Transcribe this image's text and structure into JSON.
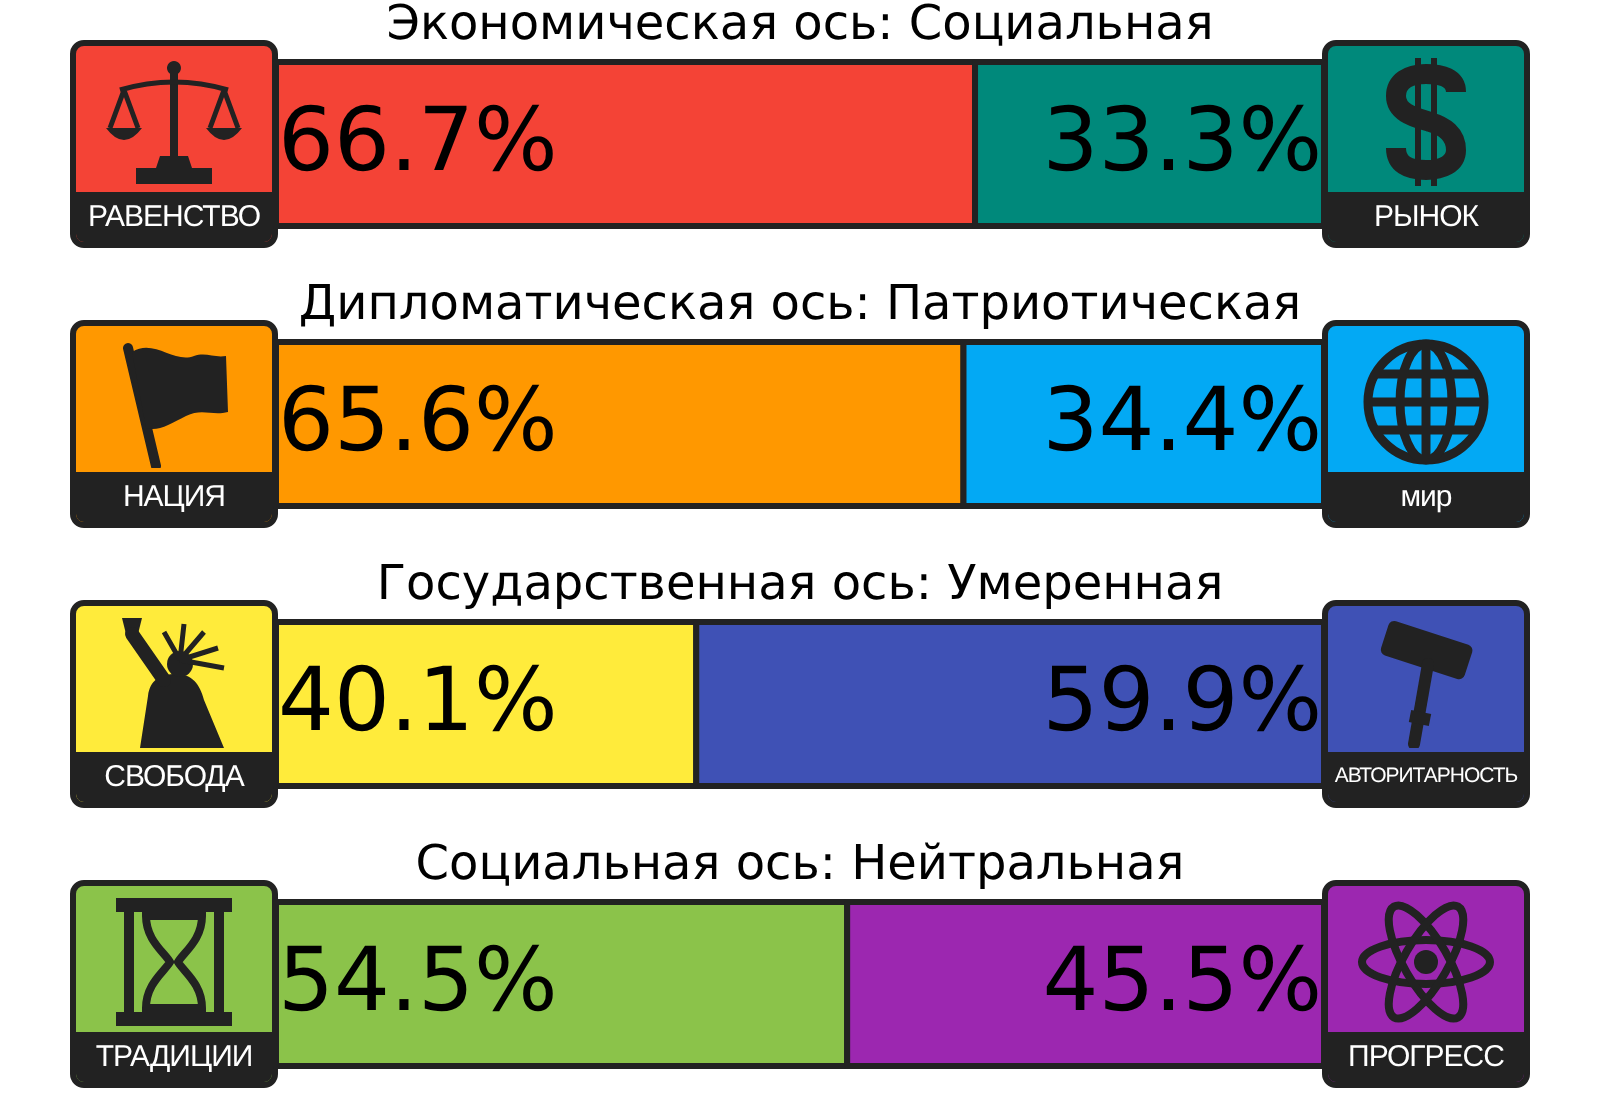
{
  "chart_data": [
    {
      "type": "bar",
      "title": "Экономическая ось: Социальная",
      "categories": [
        null
      ],
      "orientation": "horizontal",
      "stacked": true,
      "tick_labels": false,
      "series": [
        {
          "name": "РАВЕНСТВО",
          "color": "#f44336",
          "values": [
            66.7
          ],
          "value_labels": [
            "66.7%"
          ]
        },
        {
          "name": "РЫНОК",
          "color": "#00897b",
          "values": [
            33.3
          ],
          "value_labels": [
            "33.3%"
          ]
        }
      ]
    },
    {
      "type": "bar",
      "title": "Дипломатическая ось: Патриотическая",
      "categories": [
        null
      ],
      "orientation": "horizontal",
      "stacked": true,
      "tick_labels": false,
      "series": [
        {
          "name": "НАЦИЯ",
          "color": "#ff9800",
          "values": [
            65.6
          ],
          "value_labels": [
            "65.6%"
          ]
        },
        {
          "name": "мир",
          "color": "#03a9f4",
          "values": [
            34.4
          ],
          "value_labels": [
            "34.4%"
          ]
        }
      ]
    },
    {
      "type": "bar",
      "title": "Государственная ось: Умеренная",
      "categories": [
        null
      ],
      "orientation": "horizontal",
      "stacked": true,
      "tick_labels": false,
      "series": [
        {
          "name": "СВОБОДА",
          "color": "#ffeb3b",
          "values": [
            40.1
          ],
          "value_labels": [
            "40.1%"
          ]
        },
        {
          "name": "АВТОРИТАРНОСТЬ",
          "color": "#3f51b5",
          "values": [
            59.9
          ],
          "value_labels": [
            "59.9%"
          ]
        }
      ]
    },
    {
      "type": "bar",
      "title": "Социальная ось: Нейтральная",
      "categories": [
        null
      ],
      "orientation": "horizontal",
      "stacked": true,
      "tick_labels": false,
      "series": [
        {
          "name": "ТРАДИЦИИ",
          "color": "#8bc34a",
          "values": [
            54.5
          ],
          "value_labels": [
            "54.5%"
          ]
        },
        {
          "name": "ПРОГРЕСС",
          "color": "#9c27b0",
          "values": [
            45.5
          ],
          "value_labels": [
            "45.5%"
          ]
        }
      ]
    }
  ]
}
